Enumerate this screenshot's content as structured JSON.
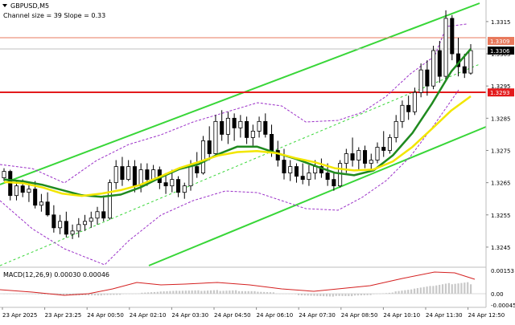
{
  "header": {
    "symbol": "GBPUSD,M5",
    "indicator": "Channel size = 39 Slope = 0.33"
  },
  "macd": {
    "label": "MACD(12,26,9) 0.00030 0.00046",
    "ticks": [
      "0.00153",
      "0.00",
      "-0.00045"
    ]
  },
  "chart_data": {
    "type": "candlestick",
    "price_ticks": [
      "1.3315",
      "1.3305",
      "1.3295",
      "1.3285",
      "1.3275",
      "1.3265",
      "1.3255",
      "1.3245"
    ],
    "price_range": [
      1.32405,
      1.33207
    ],
    "current_price": "1.3306",
    "levels": [
      {
        "label": "1.3309",
        "price": 1.3309,
        "color": "#e8795c"
      },
      {
        "label": "1.3293",
        "price": 1.3293,
        "color": "#e31a1c"
      }
    ],
    "time_labels": [
      "23 Apr 2025",
      "23 Apr 23:25",
      "24 Apr 00:50",
      "24 Apr 02:10",
      "24 Apr 03:30",
      "24 Apr 04:50",
      "24 Apr 06:10",
      "24 Apr 07:30",
      "24 Apr 08:50",
      "24 Apr 10:10",
      "24 Apr 11:30",
      "24 Apr 12:50"
    ],
    "series": [
      {
        "name": "MA 30",
        "kind": "line",
        "color": "#1f8a1f",
        "values": [
          1.3266,
          1.32654,
          1.32643,
          1.32627,
          1.32611,
          1.32606,
          1.32613,
          1.32635,
          1.32665,
          1.32692,
          1.32707,
          1.32738,
          1.32762,
          1.32762,
          1.32742,
          1.32724,
          1.32702,
          1.32681,
          1.32673,
          1.32688,
          1.32735,
          1.32804,
          1.32895,
          1.32995,
          1.33065
        ]
      },
      {
        "name": "MA 60",
        "kind": "line",
        "color": "#f2e600",
        "values": [
          1.32652,
          1.32648,
          1.32635,
          1.32616,
          1.32609,
          1.32616,
          1.32627,
          1.32643,
          1.32668,
          1.32695,
          1.32714,
          1.32734,
          1.32745,
          1.32748,
          1.32742,
          1.32726,
          1.32713,
          1.32695,
          1.32688,
          1.32691,
          1.32716,
          1.32761,
          1.32817,
          1.32874,
          1.32918
        ]
      }
    ],
    "candles": [
      [
        1.32665,
        1.32695,
        1.32655,
        1.32685
      ],
      [
        1.32685,
        1.3269,
        1.32595,
        1.3261
      ],
      [
        1.3261,
        1.32655,
        1.32595,
        1.3264
      ],
      [
        1.3264,
        1.3266,
        1.32605,
        1.3262
      ],
      [
        1.3262,
        1.3265,
        1.3259,
        1.3263
      ],
      [
        1.3263,
        1.32655,
        1.3257,
        1.3258
      ],
      [
        1.3258,
        1.32615,
        1.3256,
        1.3259
      ],
      [
        1.3259,
        1.3262,
        1.32545,
        1.3255
      ],
      [
        1.3255,
        1.3258,
        1.32495,
        1.3251
      ],
      [
        1.3251,
        1.3255,
        1.3249,
        1.3253
      ],
      [
        1.3253,
        1.3256,
        1.3248,
        1.3249
      ],
      [
        1.3249,
        1.3252,
        1.32475,
        1.325
      ],
      [
        1.325,
        1.3254,
        1.3248,
        1.3252
      ],
      [
        1.3252,
        1.3255,
        1.325,
        1.3253
      ],
      [
        1.3253,
        1.3256,
        1.3251,
        1.3254
      ],
      [
        1.3254,
        1.32575,
        1.3252,
        1.3256
      ],
      [
        1.3256,
        1.3261,
        1.3253,
        1.3254
      ],
      [
        1.3254,
        1.3266,
        1.32535,
        1.3265
      ],
      [
        1.3265,
        1.3272,
        1.3263,
        1.327
      ],
      [
        1.327,
        1.3273,
        1.3264,
        1.3266
      ],
      [
        1.3266,
        1.3272,
        1.32655,
        1.327
      ],
      [
        1.327,
        1.3272,
        1.3262,
        1.3264
      ],
      [
        1.3264,
        1.3271,
        1.3262,
        1.3269
      ],
      [
        1.3269,
        1.3271,
        1.3264,
        1.3266
      ],
      [
        1.3266,
        1.32705,
        1.32655,
        1.3269
      ],
      [
        1.3269,
        1.327,
        1.3263,
        1.3265
      ],
      [
        1.3265,
        1.3268,
        1.32615,
        1.3264
      ],
      [
        1.3264,
        1.3269,
        1.3262,
        1.3266
      ],
      [
        1.3266,
        1.3267,
        1.32605,
        1.3262
      ],
      [
        1.3262,
        1.3265,
        1.326,
        1.3264
      ],
      [
        1.3264,
        1.3272,
        1.32625,
        1.327
      ],
      [
        1.327,
        1.32745,
        1.32665,
        1.3268
      ],
      [
        1.3268,
        1.32795,
        1.32675,
        1.3278
      ],
      [
        1.3278,
        1.32825,
        1.3272,
        1.3274
      ],
      [
        1.3274,
        1.3286,
        1.32735,
        1.3284
      ],
      [
        1.3284,
        1.32875,
        1.3278,
        1.328
      ],
      [
        1.328,
        1.3287,
        1.3277,
        1.3285
      ],
      [
        1.3285,
        1.32865,
        1.3278,
        1.3282
      ],
      [
        1.3282,
        1.3286,
        1.3279,
        1.3284
      ],
      [
        1.3284,
        1.32855,
        1.3277,
        1.3279
      ],
      [
        1.3279,
        1.3283,
        1.32765,
        1.3281
      ],
      [
        1.3281,
        1.32855,
        1.3279,
        1.3284
      ],
      [
        1.3284,
        1.32865,
        1.3279,
        1.328
      ],
      [
        1.328,
        1.3283,
        1.3273,
        1.3275
      ],
      [
        1.3275,
        1.3278,
        1.327,
        1.3272
      ],
      [
        1.3272,
        1.32755,
        1.3266,
        1.3268
      ],
      [
        1.3268,
        1.3272,
        1.32655,
        1.327
      ],
      [
        1.327,
        1.3271,
        1.3265,
        1.3267
      ],
      [
        1.3267,
        1.3271,
        1.32645,
        1.3266
      ],
      [
        1.3266,
        1.32705,
        1.3264,
        1.3268
      ],
      [
        1.3268,
        1.3272,
        1.3266,
        1.327
      ],
      [
        1.327,
        1.32725,
        1.32665,
        1.3268
      ],
      [
        1.3268,
        1.3271,
        1.3264,
        1.3266
      ],
      [
        1.3266,
        1.3268,
        1.32625,
        1.3264
      ],
      [
        1.3264,
        1.3272,
        1.32635,
        1.3271
      ],
      [
        1.3271,
        1.32755,
        1.3268,
        1.3274
      ],
      [
        1.3274,
        1.3279,
        1.327,
        1.3272
      ],
      [
        1.3272,
        1.3276,
        1.3269,
        1.3275
      ],
      [
        1.3275,
        1.32765,
        1.32695,
        1.3271
      ],
      [
        1.3271,
        1.3274,
        1.32685,
        1.3272
      ],
      [
        1.3272,
        1.32775,
        1.3271,
        1.3276
      ],
      [
        1.3276,
        1.3281,
        1.3273,
        1.3275
      ],
      [
        1.3275,
        1.328,
        1.3274,
        1.3279
      ],
      [
        1.3279,
        1.3286,
        1.32775,
        1.3284
      ],
      [
        1.3284,
        1.32905,
        1.3282,
        1.3289
      ],
      [
        1.3289,
        1.3292,
        1.32845,
        1.3287
      ],
      [
        1.3287,
        1.32945,
        1.3286,
        1.3293
      ],
      [
        1.3293,
        1.3302,
        1.32915,
        1.33
      ],
      [
        1.33,
        1.3303,
        1.3292,
        1.3295
      ],
      [
        1.3295,
        1.33075,
        1.3294,
        1.3306
      ],
      [
        1.3306,
        1.3309,
        1.3296,
        1.3298
      ],
      [
        1.3298,
        1.33185,
        1.3297,
        1.3316
      ],
      [
        1.3316,
        1.3317,
        1.3303,
        1.3305
      ],
      [
        1.3305,
        1.331,
        1.3298,
        1.3301
      ],
      [
        1.3301,
        1.3305,
        1.32975,
        1.3299
      ],
      [
        1.3299,
        1.3308,
        1.32985,
        1.3306
      ]
    ]
  }
}
